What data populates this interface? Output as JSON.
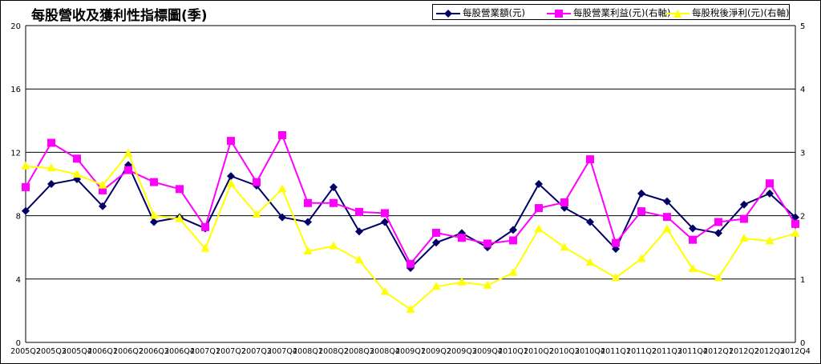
{
  "chart_data": {
    "type": "line",
    "title": "每股營收及獲利性指標圖(季)",
    "categories": [
      "2005Q2",
      "2005Q3",
      "2005Q4",
      "2006Q1",
      "2006Q2",
      "2006Q3",
      "2006Q4",
      "2007Q1",
      "2007Q2",
      "2007Q3",
      "2007Q4",
      "2008Q1",
      "2008Q2",
      "2008Q3",
      "2008Q4",
      "2009Q1",
      "2009Q2",
      "2009Q3",
      "2009Q4",
      "2010Q1",
      "2010Q2",
      "2010Q3",
      "2010Q4",
      "2011Q1",
      "2011Q2",
      "2011Q3",
      "2011Q4",
      "2012Q1",
      "2012Q2",
      "2012Q3",
      "2012Q4"
    ],
    "y_left": {
      "min": 0,
      "max": 20,
      "ticks": [
        "0",
        "4",
        "8",
        "12",
        "16",
        "20"
      ]
    },
    "y_right": {
      "min": 0,
      "max": 5,
      "ticks": [
        "0",
        "1",
        "2",
        "3",
        "4",
        "5"
      ]
    },
    "grid": true,
    "legend_position": "top-right",
    "series": [
      {
        "name": "每股營業額(元)",
        "axis": "left",
        "color": "#000066",
        "marker": "diamond",
        "values": [
          8.3,
          10.0,
          10.3,
          8.6,
          11.2,
          7.6,
          7.9,
          7.2,
          10.5,
          9.9,
          7.9,
          7.6,
          9.8,
          7.0,
          7.6,
          4.7,
          6.3,
          6.9,
          6.0,
          7.1,
          10.0,
          8.5,
          7.6,
          5.9,
          9.4,
          8.9,
          7.2,
          6.9,
          8.7,
          9.4,
          7.9
        ]
      },
      {
        "name": "每股營業利益(元)(右軸)",
        "axis": "right",
        "color": "#ff00ff",
        "marker": "square",
        "values": [
          2.45,
          3.15,
          2.9,
          2.4,
          2.72,
          2.53,
          2.42,
          1.82,
          3.18,
          2.53,
          3.27,
          2.2,
          2.2,
          2.06,
          2.04,
          1.24,
          1.73,
          1.65,
          1.56,
          1.61,
          2.12,
          2.21,
          2.89,
          1.57,
          2.07,
          1.98,
          1.62,
          1.9,
          1.95,
          2.51,
          1.87
        ]
      },
      {
        "name": "每股稅後淨利(元)(右軸)",
        "axis": "right",
        "color": "#ffff00",
        "marker": "triangle",
        "values": [
          2.78,
          2.75,
          2.65,
          2.48,
          2.98,
          2.0,
          1.95,
          1.48,
          2.5,
          2.02,
          2.42,
          1.44,
          1.52,
          1.3,
          0.8,
          0.52,
          0.88,
          0.95,
          0.9,
          1.1,
          1.79,
          1.5,
          1.26,
          1.02,
          1.32,
          1.79,
          1.16,
          1.02,
          1.64,
          1.6,
          1.72
        ]
      }
    ]
  }
}
